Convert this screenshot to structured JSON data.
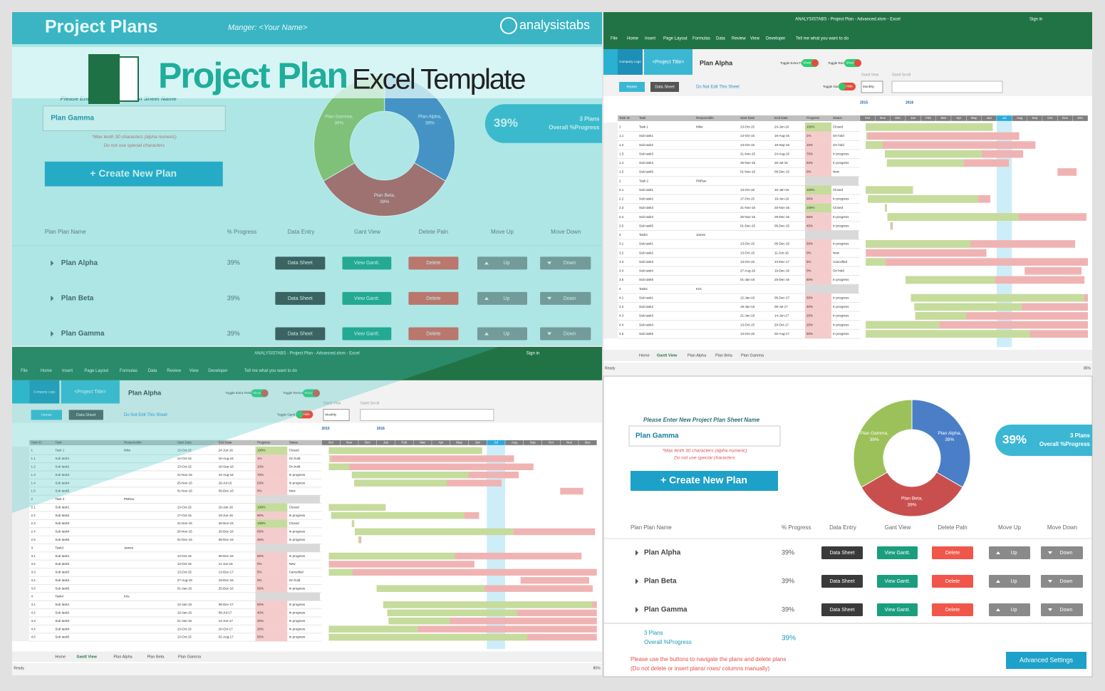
{
  "collage_title": {
    "main": "Project Plan",
    "sub": "Excel Template"
  },
  "dashboard": {
    "app_title": "Project Plans",
    "manager": "Manger: <Your Name>",
    "brand": "analysistabs",
    "prompt": "Please Enter New Project Plan Sheet Name",
    "input": "Plan Gamma",
    "hint1": "*Max lenth 30 characters (alpha numeric)",
    "hint2": "Do not use special characters",
    "create_button": "+ Create New Plan",
    "summary": {
      "value": "39%",
      "count": "3 Plans",
      "label": "Overall %Progress"
    },
    "donut": [
      {
        "name": "Plan Alpha,",
        "value": 39,
        "value_label": "39%",
        "color": "#4a7fc8"
      },
      {
        "name": "Plan Beta,",
        "value": 39,
        "value_label": "39%",
        "color": "#c94f4f"
      },
      {
        "name": "Plan Gamma,",
        "value": 39,
        "value_label": "39%",
        "color": "#9cc15a"
      }
    ],
    "columns": [
      "Plan Plan Name",
      "% Progress",
      "Data Entry",
      "Gant View",
      "Delete Paln",
      "Move Up",
      "Move Down"
    ],
    "plans": [
      {
        "name": "Plan Alpha",
        "progress": "39%"
      },
      {
        "name": "Plan Beta",
        "progress": "39%"
      },
      {
        "name": "Plan Gamma",
        "progress": "39%"
      }
    ],
    "buttons": {
      "data": "Data Sheet",
      "gantt": "View Gantt.",
      "delete": "Delete",
      "up": "Up",
      "down": "Down"
    },
    "footer": {
      "count": "3 Plans",
      "label": "Overall %Progress",
      "progress": "39%"
    },
    "notes": [
      "Please use the buttons to navigate the plans and delete plans",
      "(Do not delete or insert plans/ rows/ columns manually)"
    ],
    "advanced": "Advanced Settings"
  },
  "excel": {
    "window_title": "ANALYSISTABS - Project Plan - Advanced.xlsm - Excel",
    "sign_in": "Sign in",
    "ribbon": [
      "File",
      "Home",
      "Insert",
      "Page Layout",
      "Formulas",
      "Data",
      "Review",
      "View",
      "Developer",
      "Tell me what you want to do"
    ],
    "company_logo": "Company Logo",
    "project_title": "<Project Title>",
    "sheet_title": "Plan Alpha",
    "toggle_extra": "Toggle Extra Fields",
    "toggle_remarks": "Toggle Remarks",
    "show": "Show",
    "home_button": "Home",
    "data_sheet_button": "Data Sheet",
    "warning": "Do Not Edit This Sheet",
    "toggle_gantt": "Toggle Gantt",
    "hide": "Hide",
    "gantt_view": "Gantt View",
    "gantt_scroll": "Gantt Scroll",
    "view_mode": "Monthly",
    "columns": [
      "Task ID",
      "Task",
      "Responsible",
      "Start Date",
      "End Date",
      "Progress",
      "Status"
    ],
    "years": [
      "2015",
      "2016"
    ],
    "months": [
      "Oct",
      "Nov",
      "Dec",
      "Jan",
      "Feb",
      "Mar",
      "Apr",
      "May",
      "Jun",
      "Jul",
      "Aug",
      "Sep",
      "Oct",
      "Nov",
      "Dec"
    ],
    "rows": [
      [
        "1",
        "Task 1",
        "Mike",
        "13-Oct-15",
        "24-Jun-16",
        "100%",
        "Closed"
      ],
      [
        "1.1",
        "Sub task1",
        null,
        "14-Oct-15",
        "16-Aug-16",
        "1%",
        "On hold"
      ],
      [
        "1.2",
        "Sub task2",
        null,
        "13-Oct-15",
        "18-Sep-16",
        "10%",
        "On hold"
      ],
      [
        "1.3",
        "Sub task3",
        null,
        "21-Nov-15",
        "24-Aug-16",
        "70%",
        "In progress"
      ],
      [
        "1.4",
        "Sub task4",
        null,
        "25-Nov-15",
        "26-Jul-16",
        "63%",
        "In progress"
      ],
      [
        "1.5",
        "Sub task5",
        null,
        "01-Nov-16",
        "09-Dec-16",
        "0%",
        "New"
      ],
      [
        "2",
        "Task 2",
        "PNRao",
        null,
        null,
        null,
        null
      ],
      [
        "2.1",
        "Sub task1",
        null,
        "13-Oct-15",
        "16-Jan-16",
        "100%",
        "Closed"
      ],
      [
        "2.2",
        "Sub task2",
        null,
        "17-Oct-15",
        "19-Jun-16",
        "90%",
        "In progress"
      ],
      [
        "2.3",
        "Sub task3",
        null,
        "21-Nov-15",
        "25-Nov-15",
        "100%",
        "Closed"
      ],
      [
        "2.4",
        "Sub task4",
        null,
        "26-Nov-15",
        "29-Dec-16",
        "66%",
        "In progress"
      ],
      [
        "2.5",
        "Sub task5",
        null,
        "01-Dec-15",
        "06-Dec-15",
        "45%",
        "In progress"
      ],
      [
        "3",
        "Task3",
        "James",
        null,
        null,
        null,
        null
      ],
      [
        "3.1",
        "Sub task1",
        null,
        "13-Oct-15",
        "06-Dec-16",
        "50%",
        "In progress"
      ],
      [
        "3.2",
        "Sub task2",
        null,
        "13-Oct-15",
        "11-Jun-16",
        "0%",
        "New"
      ],
      [
        "3.3",
        "Sub task3",
        null,
        "13-Oct-15",
        "13-Dec-17",
        "5%",
        "Cancelled"
      ],
      [
        "3.4",
        "Sub task4",
        null,
        "27-Aug-16",
        "19-Dec-16",
        "0%",
        "On hold"
      ],
      [
        "3.5",
        "Sub task5",
        null,
        "01-Jan-16",
        "25-Dec-16",
        "50%",
        "In progress"
      ],
      [
        "4",
        "Task4",
        "Kris",
        null,
        null,
        null,
        null
      ],
      [
        "4.1",
        "Sub task1",
        null,
        "12-Jan-16",
        "06-Dec-17",
        "50%",
        "In progress"
      ],
      [
        "4.2",
        "Sub task2",
        null,
        "19-Jan-16",
        "09-Jul-17",
        "40%",
        "In progress"
      ],
      [
        "4.3",
        "Sub task3",
        null,
        "21-Jan-16",
        "14-Jun-17",
        "20%",
        "In progress"
      ],
      [
        "4.4",
        "Sub task4",
        null,
        "13-Oct-15",
        "20-Oct-17",
        "20%",
        "In progress"
      ],
      [
        "4.5",
        "Sub task5",
        null,
        "13-Oct-15",
        "02-Aug-17",
        "50%",
        "In progress"
      ]
    ],
    "sheet_tabs": [
      "Home",
      "Gantt View",
      "Plan Alpha",
      "Plan Beta",
      "Plan Gamma"
    ],
    "status": "Ready",
    "zoom": "85%"
  }
}
